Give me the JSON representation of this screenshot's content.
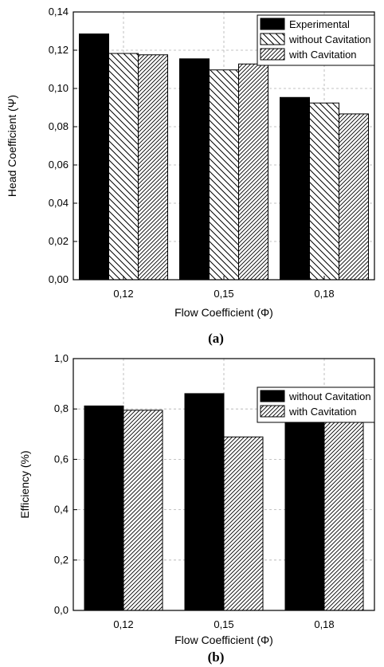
{
  "chart_data": [
    {
      "type": "bar",
      "panel": "(a)",
      "categories": [
        "0,12",
        "0,15",
        "0,18"
      ],
      "series": [
        {
          "name": "Experimental",
          "values": [
            0.1285,
            0.1155,
            0.0953
          ],
          "fill": "solid"
        },
        {
          "name": "without Cavitation",
          "values": [
            0.1183,
            0.1097,
            0.0924
          ],
          "fill": "hatch-back"
        },
        {
          "name": "with Cavitation",
          "values": [
            0.1176,
            0.1128,
            0.0867
          ],
          "fill": "hatch-forward"
        }
      ],
      "xlabel": "Flow Coefficient (Φ)",
      "ylabel": "Head Coefficient (Ψ)",
      "ylim": [
        0,
        0.14
      ],
      "yticks": [
        "0,00",
        "0,02",
        "0,04",
        "0,06",
        "0,08",
        "0,10",
        "0,12",
        "0,14"
      ],
      "grid": true,
      "legend_position": "top-right"
    },
    {
      "type": "bar",
      "panel": "(b)",
      "categories": [
        "0,12",
        "0,15",
        "0,18"
      ],
      "series": [
        {
          "name": "without Cavitation",
          "values": [
            0.812,
            0.861,
            0.824
          ],
          "fill": "solid"
        },
        {
          "name": "with Cavitation",
          "values": [
            0.795,
            0.689,
            0.771
          ],
          "fill": "hatch-forward"
        }
      ],
      "xlabel": "Flow Coefficient (Φ)",
      "ylabel": "Efficiency (%)",
      "ylim": [
        0,
        1.0
      ],
      "yticks": [
        "0,0",
        "0,2",
        "0,4",
        "0,6",
        "0,8",
        "1,0"
      ],
      "grid": true,
      "legend_position": "top-right"
    }
  ],
  "colors": {
    "bar": "#000000",
    "grid": "#b0b0b0",
    "background": "#ffffff"
  }
}
